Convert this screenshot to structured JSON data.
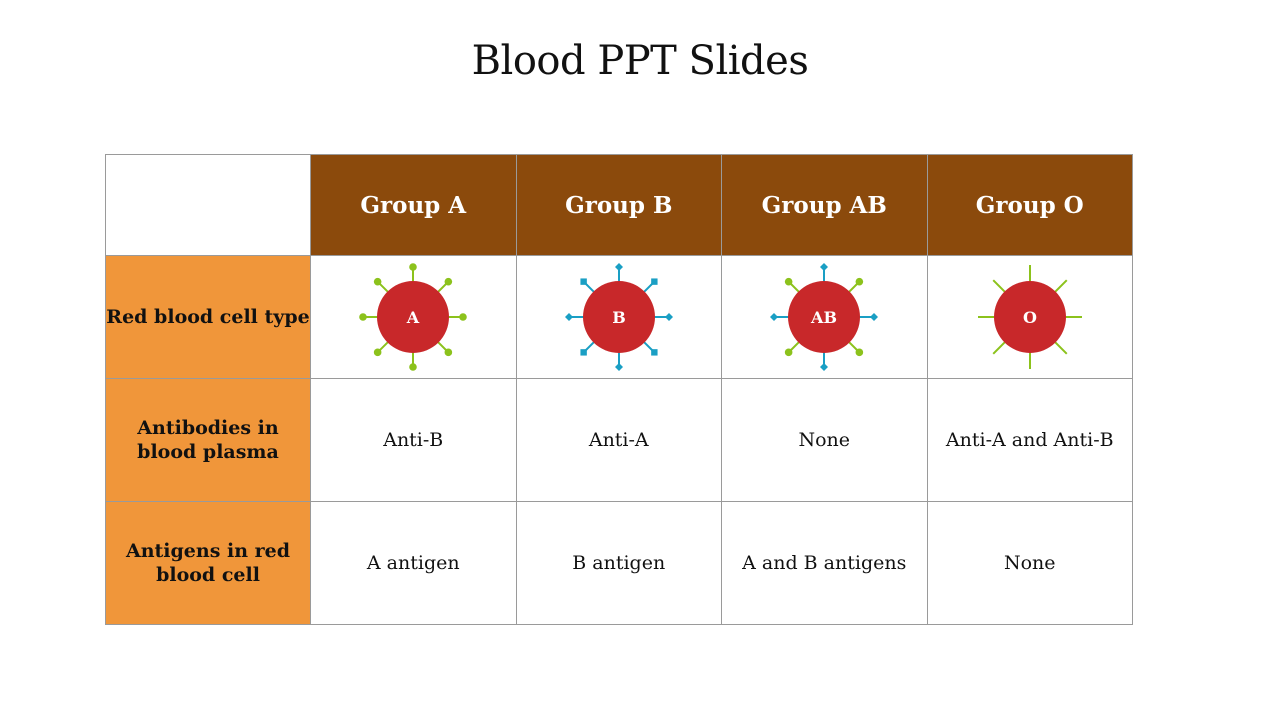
{
  "slide": {
    "title": "Blood PPT Slides"
  },
  "table": {
    "groups": [
      "Group A",
      "Group B",
      "Group AB",
      "Group O"
    ],
    "rows": [
      {
        "label": "Red blood cell type",
        "cells": [
          "A",
          "B",
          "AB",
          "O"
        ]
      },
      {
        "label": "Antibodies in blood plasma",
        "cells": [
          "Anti-B",
          "Anti-A",
          "None",
          "Anti-A and Anti-B"
        ]
      },
      {
        "label": "Antigens in red blood cell",
        "cells": [
          "A antigen",
          "B antigen",
          "A and B antigens",
          "None"
        ]
      }
    ]
  },
  "colors": {
    "header_bg": "#8b4a0c",
    "rowhead_bg": "#f0963a",
    "cell_red": "#c8282a",
    "antigen_a": "#8cc21c",
    "antigen_b": "#1a9fc4"
  },
  "cell_icons": [
    {
      "name": "blood-cell-a-icon",
      "antigens": "A"
    },
    {
      "name": "blood-cell-b-icon",
      "antigens": "B"
    },
    {
      "name": "blood-cell-ab-icon",
      "antigens": "AB"
    },
    {
      "name": "blood-cell-o-icon",
      "antigens": "O"
    }
  ]
}
